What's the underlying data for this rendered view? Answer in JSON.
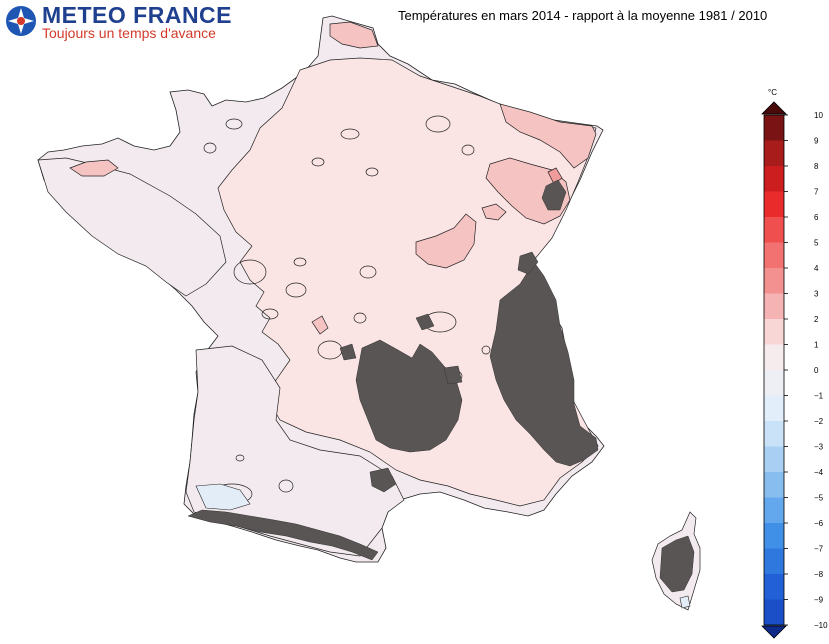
{
  "logo": {
    "name": "METEO FRANCE",
    "tagline": "Toujours un temps d'avance"
  },
  "title": "Températures en mars 2014 - rapport à la moyenne 1981 / 2010",
  "legend": {
    "unit": "°C",
    "ticks": [
      "10",
      "9",
      "8",
      "7",
      "6",
      "5",
      "4",
      "3",
      "2",
      "1",
      "0",
      "−1",
      "−2",
      "−3",
      "−4",
      "−5",
      "−6",
      "−7",
      "−8",
      "−9",
      "−10"
    ],
    "colors": [
      "#7a1414",
      "#a81c1c",
      "#cc1e1e",
      "#ea2b2b",
      "#f04f4f",
      "#f27171",
      "#f39191",
      "#f6b3b3",
      "#f9d6d6",
      "#f6ecee",
      "#eeeef5",
      "#e2eefa",
      "#c9e2f7",
      "#a9d0f3",
      "#87bdef",
      "#63a8ec",
      "#3f90e6",
      "#2f78de",
      "#2160d6",
      "#1a4fc8"
    ]
  },
  "map": {
    "classes": {
      "zero_to_one": "#f2eaee",
      "one_to_two": "#fbe4e4",
      "two_to_three": "#f6c3c3",
      "three_to_four": "#f19c9c",
      "negative": "#e3edf7",
      "high_relief": "#5a5555"
    }
  }
}
